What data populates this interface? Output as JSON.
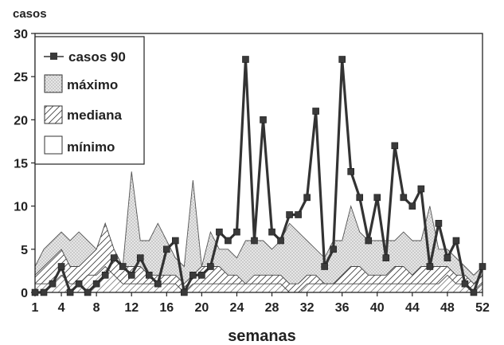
{
  "chart_data": {
    "type": "area",
    "ylabel": "casos",
    "xlabel": "semanas",
    "xlim": [
      1,
      52
    ],
    "ylim": [
      0,
      30
    ],
    "x_ticks": [
      1,
      4,
      8,
      12,
      16,
      20,
      24,
      28,
      32,
      36,
      40,
      44,
      48,
      52
    ],
    "y_ticks": [
      0,
      5,
      10,
      15,
      20,
      25,
      30
    ],
    "grid": false,
    "legend_position": "top-left",
    "x": [
      1,
      2,
      3,
      4,
      5,
      6,
      7,
      8,
      9,
      10,
      11,
      12,
      13,
      14,
      15,
      16,
      17,
      18,
      19,
      20,
      21,
      22,
      23,
      24,
      25,
      26,
      27,
      28,
      29,
      30,
      31,
      32,
      33,
      34,
      35,
      36,
      37,
      38,
      39,
      40,
      41,
      42,
      43,
      44,
      45,
      46,
      47,
      48,
      49,
      50,
      51,
      52
    ],
    "series": [
      {
        "name": "casos 90",
        "style": "line-marker",
        "values": [
          0,
          0,
          1,
          3,
          0,
          1,
          0,
          1,
          2,
          4,
          3,
          2,
          4,
          2,
          1,
          5,
          6,
          0,
          2,
          2,
          3,
          7,
          6,
          7,
          27,
          6,
          20,
          7,
          6,
          9,
          9,
          11,
          21,
          3,
          5,
          27,
          14,
          11,
          6,
          11,
          4,
          17,
          11,
          10,
          12,
          3,
          8,
          4,
          6,
          1,
          0,
          3
        ]
      },
      {
        "name": "máximo",
        "style": "dotted-area",
        "values": [
          3,
          5,
          6,
          7,
          6,
          7,
          6,
          5,
          4,
          4,
          3,
          14,
          6,
          6,
          8,
          6,
          4,
          3,
          13,
          3,
          7,
          5,
          5,
          4,
          6,
          6,
          6,
          5,
          6,
          8,
          7,
          6,
          5,
          4,
          6,
          6,
          10,
          7,
          6,
          6,
          6,
          6,
          7,
          6,
          6,
          10,
          5,
          5,
          4,
          3,
          2,
          3
        ]
      },
      {
        "name": "mediana",
        "style": "hatched-area",
        "values": [
          2,
          3,
          4,
          5,
          3,
          3,
          4,
          5,
          8,
          5,
          3,
          3,
          3,
          2,
          2,
          2,
          2,
          1,
          2,
          3,
          3,
          3,
          2,
          2,
          1,
          2,
          2,
          2,
          2,
          1,
          1,
          2,
          2,
          1,
          1,
          2,
          3,
          3,
          2,
          2,
          2,
          3,
          3,
          2,
          3,
          3,
          3,
          3,
          2,
          2,
          1,
          2
        ]
      },
      {
        "name": "mínimo",
        "style": "line-area",
        "values": [
          1,
          1,
          1,
          2,
          1,
          1,
          2,
          2,
          3,
          2,
          1,
          1,
          1,
          1,
          1,
          1,
          1,
          0,
          1,
          1,
          1,
          1,
          1,
          1,
          1,
          1,
          1,
          1,
          1,
          0,
          0,
          1,
          1,
          1,
          1,
          1,
          1,
          1,
          1,
          1,
          1,
          1,
          1,
          1,
          1,
          1,
          1,
          2,
          1,
          1,
          0,
          1
        ]
      }
    ]
  },
  "colors": {
    "axis": "#222222",
    "casos_line": "#333333",
    "marker": "#3a3a3a",
    "max_fill": "#e6e6e6",
    "max_dots": "#888888",
    "max_line": "#555555",
    "median_hatch": "#444444",
    "median_line": "#444444",
    "min_line": "#444444"
  }
}
